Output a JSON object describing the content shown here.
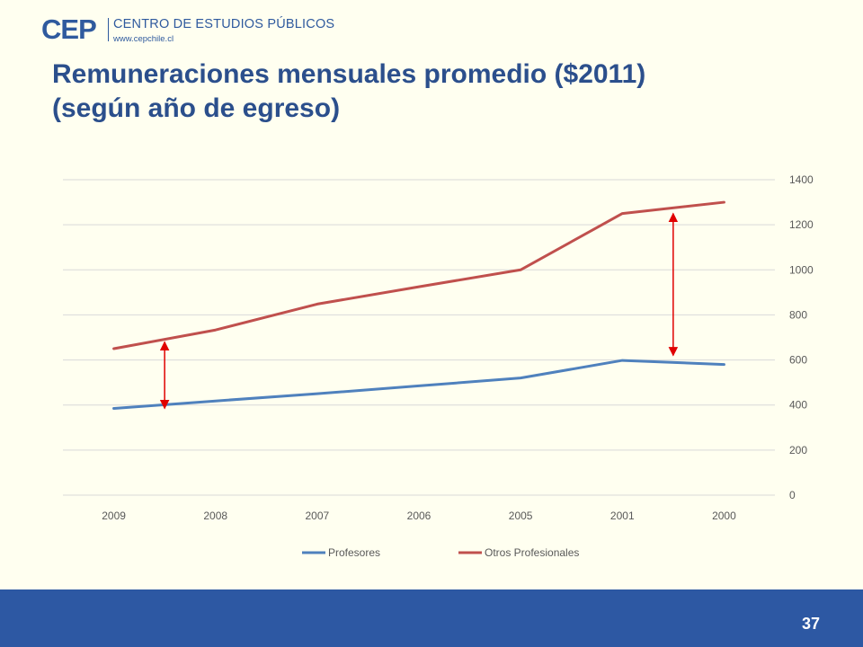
{
  "header": {
    "logo_mark": "CEP",
    "logo_name": "CENTRO DE ESTUDIOS PÚBLICOS",
    "logo_url": "www.cepchile.cl"
  },
  "slide": {
    "title_line1": "Remuneraciones mensuales promedio ($2011)",
    "title_line2": "(según año de egreso)",
    "page_number": "37"
  },
  "colors": {
    "profesores": "#4F81BD",
    "otros": "#C0504D",
    "arrow": "#E00000",
    "grid": "#D9D9D9",
    "axis_text": "#595959"
  },
  "chart_data": {
    "type": "line",
    "categories": [
      "2009",
      "2008",
      "2007",
      "2006",
      "2005",
      "2001",
      "2000"
    ],
    "series": [
      {
        "name": "Profesores",
        "values": [
          385,
          418,
          450,
          485,
          520,
          598,
          580
        ]
      },
      {
        "name": "Otros Profesionales",
        "values": [
          650,
          733,
          848,
          925,
          1000,
          1250,
          1300
        ]
      }
    ],
    "yticks": [
      "0",
      "200",
      "400",
      "600",
      "800",
      "1000",
      "1200",
      "1400"
    ],
    "ylim": [
      0,
      1400
    ],
    "y_axis_position": "right",
    "grid": true,
    "legend": "bottom",
    "annotations": [
      {
        "type": "double-arrow",
        "between": "series",
        "category_position": 0.5,
        "from": 385,
        "to": 680
      },
      {
        "type": "double-arrow",
        "between": "series",
        "category_position": 5.5,
        "from": 620,
        "to": 1250
      }
    ]
  }
}
